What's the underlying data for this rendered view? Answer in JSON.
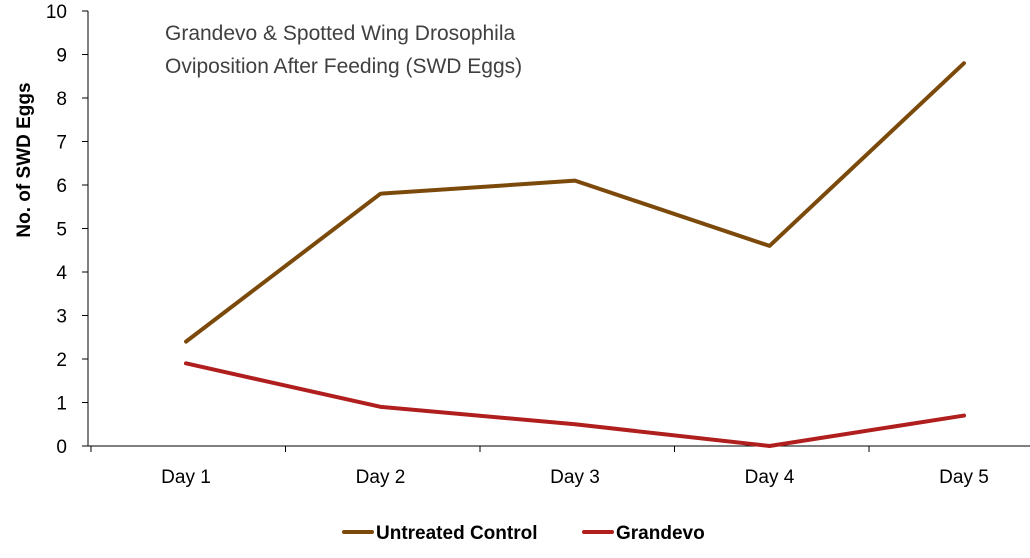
{
  "chart_data": {
    "type": "line",
    "title_lines": [
      "Grandevo & Spotted Wing Drosophila",
      "Oviposition After Feeding (SWD Eggs)"
    ],
    "xlabel": "",
    "ylabel": "No. of SWD Eggs",
    "ylim": [
      0,
      10
    ],
    "yticks": [
      0,
      1,
      2,
      3,
      4,
      5,
      6,
      7,
      8,
      9,
      10
    ],
    "categories": [
      "Day 1",
      "Day 2",
      "Day 3",
      "Day 4",
      "Day 5"
    ],
    "series": [
      {
        "name": "Untreated Control",
        "color": "#7B4A0B",
        "values": [
          2.4,
          5.8,
          6.1,
          4.6,
          8.8
        ]
      },
      {
        "name": "Grandevo",
        "color": "#B01E1E",
        "values": [
          1.9,
          0.9,
          0.5,
          0.0,
          0.7
        ]
      }
    ],
    "legend_position": "bottom-center",
    "grid": false
  }
}
